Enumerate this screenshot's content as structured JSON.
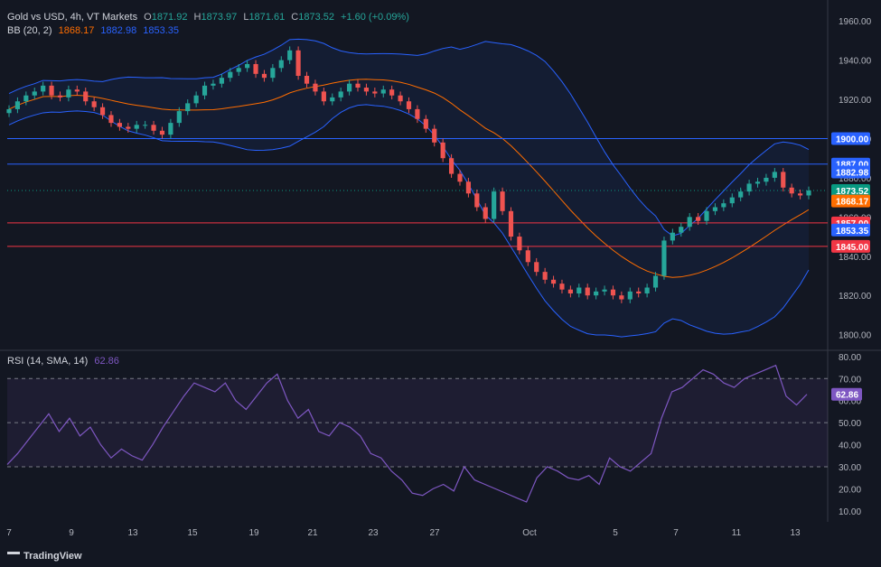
{
  "header": {
    "symbol": "Gold vs USD, 4h, VT Markets",
    "open_label": "O",
    "open": "1871.92",
    "high_label": "H",
    "high": "1873.97",
    "low_label": "L",
    "low": "1871.61",
    "close_label": "C",
    "close": "1873.52",
    "change": "+1.60 (+0.09%)",
    "bb_label": "BB (20, 2)",
    "bb_basis": "1868.17",
    "bb_upper": "1882.98",
    "bb_lower": "1853.35",
    "rsi_label": "RSI (14, SMA, 14)",
    "rsi_value": "62.86"
  },
  "logo_text": "TradingView",
  "colors": {
    "bg": "#131722",
    "up": "#26a69a",
    "down": "#ef5350",
    "grid": "#363a45",
    "bb_band": "#2962ff",
    "bb_basis": "#ff6d00",
    "bb_fill": "#2962ff",
    "rsi_line": "#7e57c2",
    "text": "#b2b5be"
  },
  "chart_data": [
    {
      "type": "candlestick",
      "title": "Gold vs USD, 4h, VT Markets",
      "y_ticks": [
        1800,
        1820,
        1840,
        1860,
        1880,
        1900,
        1920,
        1940,
        1960
      ],
      "ylim": [
        1792,
        1967
      ],
      "x_ticks": [
        "7",
        "9",
        "13",
        "15",
        "19",
        "21",
        "23",
        "27",
        "Oct",
        "5",
        "7",
        "11",
        "13"
      ],
      "close_path": [
        1915,
        1919,
        1922,
        1924,
        1927,
        1922,
        1921,
        1925,
        1924,
        1919,
        1916,
        1912,
        1908,
        1906,
        1905,
        1907,
        1907,
        1904,
        1902,
        1908,
        1914,
        1918,
        1922,
        1927,
        1928,
        1931,
        1934,
        1936,
        1938,
        1933,
        1931,
        1936,
        1940,
        1945,
        1932,
        1928,
        1924,
        1919,
        1921,
        1924,
        1928,
        1926,
        1924,
        1923,
        1925,
        1922,
        1919,
        1915,
        1910,
        1905,
        1898,
        1890,
        1882,
        1878,
        1872,
        1865,
        1859,
        1873,
        1863,
        1850,
        1843,
        1837,
        1832,
        1828,
        1826,
        1823,
        1821,
        1824,
        1820,
        1822,
        1823,
        1820,
        1818,
        1822,
        1821,
        1824,
        1830,
        1848,
        1852,
        1855,
        1860,
        1858,
        1863,
        1865,
        1867,
        1870,
        1873,
        1877,
        1878,
        1880,
        1883,
        1875,
        1872,
        1871,
        1873.52
      ],
      "hlines": [
        {
          "value": 1900,
          "label": "1900.00",
          "color": "#2962ff"
        },
        {
          "value": 1887,
          "label": "1887.00",
          "color": "#2962ff"
        },
        {
          "value": 1857,
          "label": "1857.00",
          "color": "#f23645"
        },
        {
          "value": 1845,
          "label": "1845.00",
          "color": "#f23645"
        }
      ],
      "price_tags": [
        {
          "value": 1882.98,
          "label": "1882.98",
          "color": "#2962ff"
        },
        {
          "value": 1873.52,
          "label": "1873.52",
          "color": "#089981"
        },
        {
          "value": 1868.17,
          "label": "1868.17",
          "color": "#ff6d00"
        },
        {
          "value": 1853.35,
          "label": "1853.35",
          "color": "#2962ff"
        }
      ]
    },
    {
      "type": "line",
      "title": "RSI (14, SMA, 14)",
      "y_ticks": [
        10,
        20,
        30,
        40,
        50,
        60,
        70,
        80
      ],
      "ylim": [
        5,
        82
      ],
      "band": [
        30,
        70
      ],
      "midline": 50,
      "values": [
        31,
        36,
        42,
        48,
        54,
        46,
        52,
        44,
        48,
        40,
        34,
        38,
        35,
        33,
        40,
        48,
        55,
        62,
        68,
        66,
        64,
        68,
        60,
        56,
        62,
        68,
        72,
        60,
        52,
        56,
        46,
        44,
        50,
        48,
        44,
        36,
        34,
        28,
        24,
        18,
        17,
        20,
        22,
        19,
        30,
        24,
        22,
        20,
        18,
        16,
        14,
        25,
        30,
        28,
        25,
        24,
        26,
        22,
        34,
        30,
        28,
        32,
        36,
        52,
        64,
        66,
        70,
        74,
        72,
        68,
        66,
        70,
        72,
        74,
        76,
        62,
        58,
        62.86
      ],
      "current_label": "62.86"
    }
  ]
}
